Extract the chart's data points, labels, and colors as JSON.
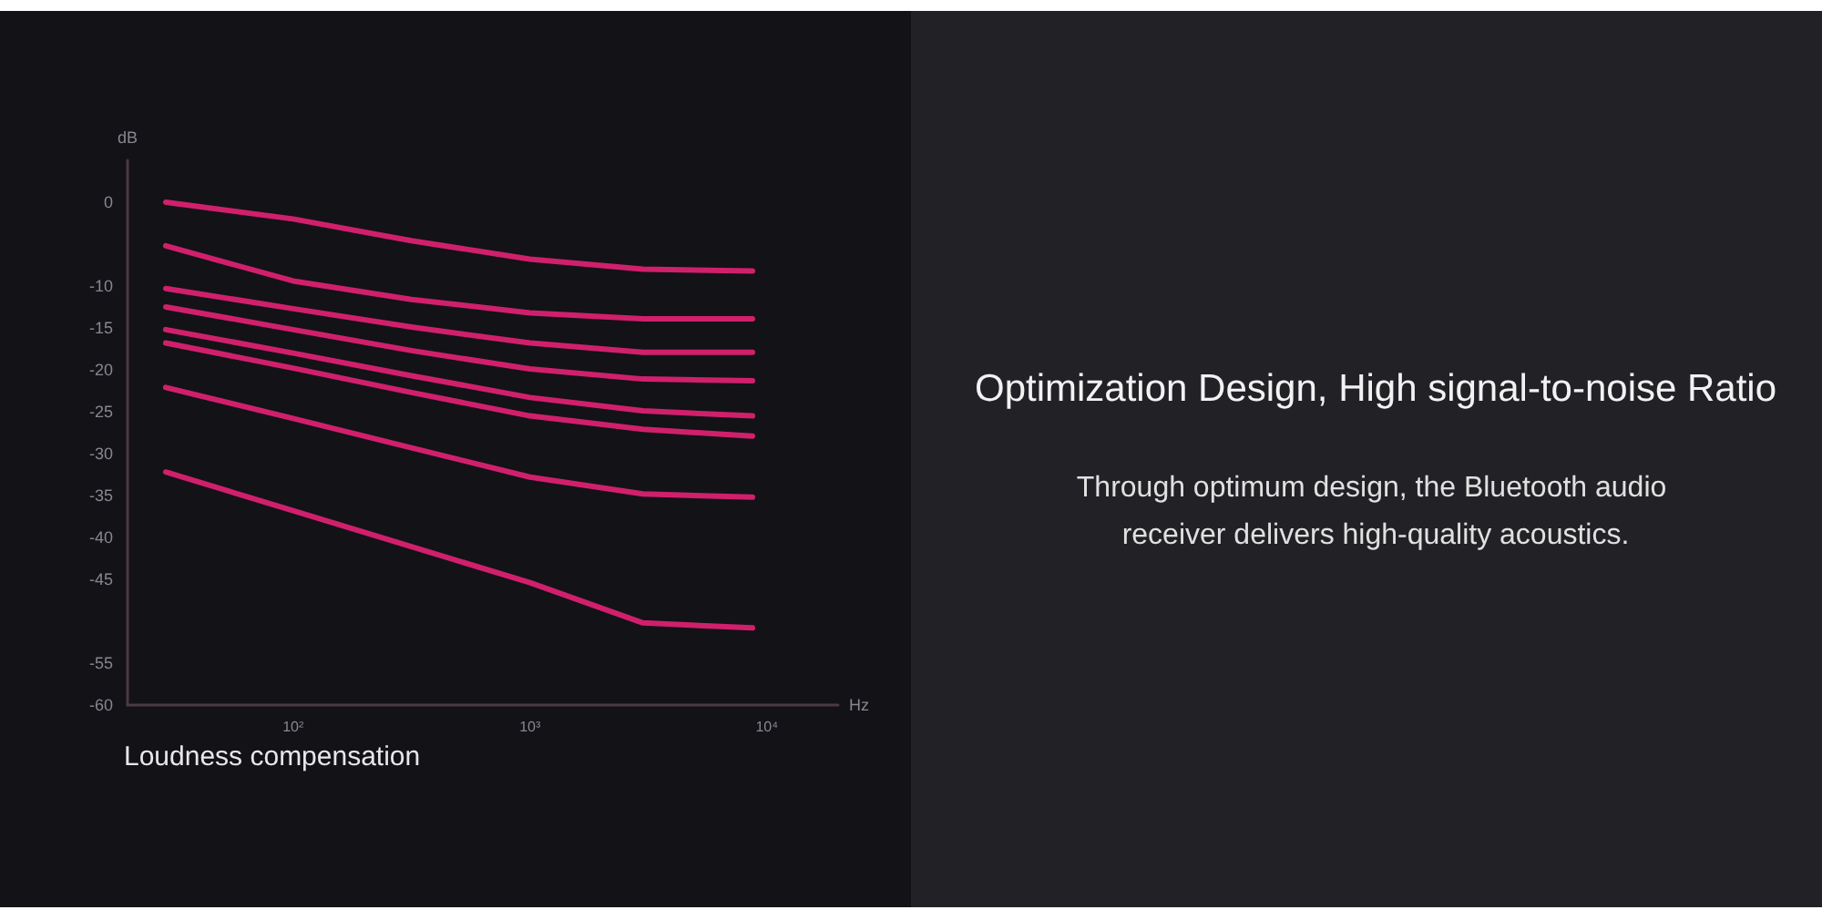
{
  "chart_data": {
    "type": "line",
    "title": "Optimization Design, High signal-to-noise Ratio",
    "subtitle": "Through optimum design, the Bluetooth audio receiver delivers high-quality acoustics.",
    "xlabel": "Hz",
    "ylabel": "dB",
    "annotations": [
      "Loudness compensation"
    ],
    "x": [
      29,
      100,
      316,
      1000,
      3000,
      8700
    ],
    "series": [
      {
        "color": "#d0206c",
        "values": [
          0,
          -2,
          -4.6,
          -6.8,
          -8,
          -8.2
        ]
      },
      {
        "color": "#d0206c",
        "values": [
          -5.2,
          -9.4,
          -11.6,
          -13.2,
          -13.9,
          -13.9
        ]
      },
      {
        "color": "#d0206c",
        "values": [
          -10.3,
          -12.7,
          -14.9,
          -16.8,
          -17.9,
          -17.9
        ]
      },
      {
        "color": "#d0206c",
        "values": [
          -12.5,
          -15.2,
          -17.7,
          -19.9,
          -21.1,
          -21.3
        ]
      },
      {
        "color": "#d0206c",
        "values": [
          -15.2,
          -18,
          -20.7,
          -23.3,
          -24.9,
          -25.5
        ]
      },
      {
        "color": "#d0206c",
        "values": [
          -16.8,
          -19.8,
          -22.7,
          -25.5,
          -27.1,
          -27.9
        ]
      },
      {
        "color": "#d0206c",
        "values": [
          -22.1,
          -25.8,
          -29.3,
          -32.8,
          -34.8,
          -35.2
        ]
      },
      {
        "color": "#d0206c",
        "values": [
          -32.2,
          -36.8,
          -41.1,
          -45.4,
          -50.2,
          -50.8
        ]
      }
    ],
    "log": "x",
    "xlim": [
      20,
      20000
    ],
    "xticks": [
      {
        "value": 100,
        "label": "10²"
      },
      {
        "value": 1000,
        "label": "10³"
      },
      {
        "value": 10000,
        "label": "10⁴"
      }
    ],
    "ylim": [
      -60,
      5
    ],
    "yticks": [
      0,
      -10,
      -15,
      -20,
      -25,
      -30,
      -35,
      -40,
      -45,
      -55,
      -60
    ],
    "grid": false,
    "marker": "none",
    "line_style": "solid"
  }
}
